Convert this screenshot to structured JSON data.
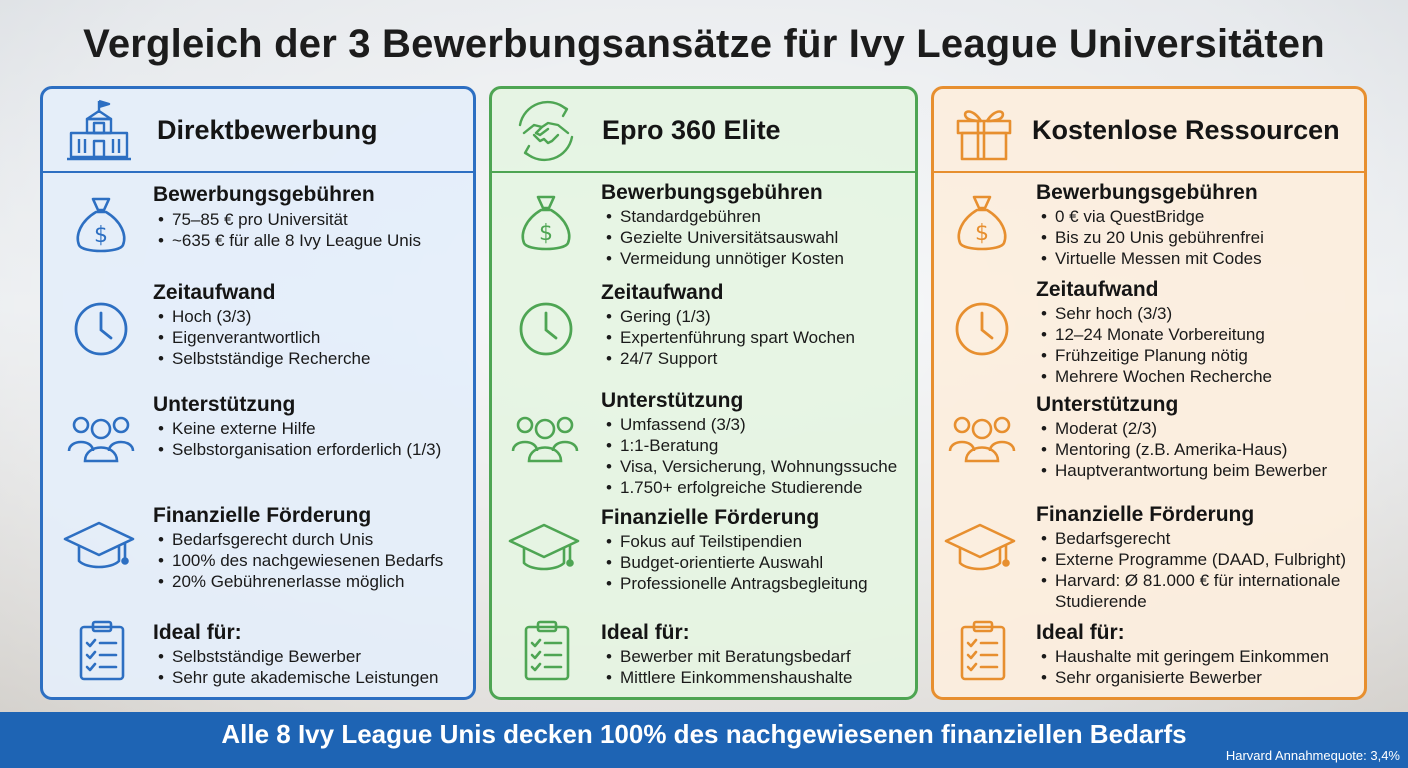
{
  "title": "Vergleich der 3 Bewerbungsansätze für Ivy League Universitäten",
  "colors": {
    "blue": "#2d6fc2",
    "green": "#4ea553",
    "orange": "#e78f2f",
    "footer": "#1e64b4"
  },
  "columns": [
    {
      "title": "Direktbewerbung",
      "header_icon": "university-building-icon",
      "sections": [
        {
          "title": "Bewerbungsgebühren",
          "icon": "money-bag-icon",
          "items": [
            "75–85 € pro Universität",
            "~635 € für alle 8 Ivy League Unis"
          ]
        },
        {
          "title": "Zeitaufwand",
          "icon": "clock-icon",
          "items": [
            "Hoch (3/3)",
            "Eigenverantwortlich",
            "Selbstständige Recherche"
          ]
        },
        {
          "title": "Unterstützung",
          "icon": "people-group-icon",
          "items": [
            "Keine externe Hilfe",
            "Selbstorganisation erforderlich (1/3)"
          ]
        },
        {
          "title": "Finanzielle Förderung",
          "icon": "graduation-cap-icon",
          "items": [
            "Bedarfsgerecht durch Unis",
            "100% des nachgewiesenen Bedarfs",
            "20% Gebührenerlasse möglich"
          ]
        },
        {
          "title": "Ideal für:",
          "icon": "clipboard-checklist-icon",
          "items": [
            "Selbstständige Bewerber",
            "Sehr gute akademische Leistungen"
          ]
        }
      ]
    },
    {
      "title": "Epro 360 Elite",
      "header_icon": "handshake-cycle-icon",
      "sections": [
        {
          "title": "Bewerbungsgebühren",
          "icon": "money-bag-icon",
          "items": [
            "Standardgebühren",
            "Gezielte Universitätsauswahl",
            "Vermeidung unnötiger Kosten"
          ]
        },
        {
          "title": "Zeitaufwand",
          "icon": "clock-icon",
          "items": [
            "Gering (1/3)",
            "Expertenführung spart Wochen",
            "24/7 Support"
          ]
        },
        {
          "title": "Unterstützung",
          "icon": "people-group-icon",
          "items": [
            "Umfassend (3/3)",
            "1:1-Beratung",
            "Visa, Versicherung, Wohnungssuche",
            "1.750+ erfolgreiche Studierende"
          ]
        },
        {
          "title": "Finanzielle Förderung",
          "icon": "graduation-cap-icon",
          "items": [
            "Fokus auf Teilstipendien",
            "Budget-orientierte Auswahl",
            "Professionelle Antragsbegleitung"
          ]
        },
        {
          "title": "Ideal für:",
          "icon": "clipboard-checklist-icon",
          "items": [
            "Bewerber mit Beratungsbedarf",
            "Mittlere Einkommenshaushalte"
          ]
        }
      ]
    },
    {
      "title": "Kostenlose Ressourcen",
      "header_icon": "gift-box-icon",
      "sections": [
        {
          "title": "Bewerbungsgebühren",
          "icon": "money-bag-icon",
          "items": [
            "0 € via QuestBridge",
            "Bis zu 20 Unis gebührenfrei",
            "Virtuelle Messen mit Codes"
          ]
        },
        {
          "title": "Zeitaufwand",
          "icon": "clock-icon",
          "items": [
            "Sehr hoch (3/3)",
            "12–24 Monate Vorbereitung",
            "Frühzeitige Planung nötig",
            "Mehrere Wochen Recherche"
          ]
        },
        {
          "title": "Unterstützung",
          "icon": "people-group-icon",
          "items": [
            "Moderat (2/3)",
            "Mentoring (z.B. Amerika-Haus)",
            "Hauptverantwortung beim Bewerber"
          ]
        },
        {
          "title": "Finanzielle Förderung",
          "icon": "graduation-cap-icon",
          "items": [
            "Bedarfsgerecht",
            "Externe Programme (DAAD, Fulbright)",
            "Harvard: Ø 81.000 € für internationale Studierende"
          ]
        },
        {
          "title": "Ideal für:",
          "icon": "clipboard-checklist-icon",
          "items": [
            "Haushalte mit geringem Einkommen",
            "Sehr organisierte Bewerber"
          ]
        }
      ]
    }
  ],
  "footer": {
    "text": "Alle 8 Ivy League Unis decken 100% des nachgewiesenen finanziellen Bedarfs",
    "note": "Harvard Annahmequote: 3,4%"
  }
}
